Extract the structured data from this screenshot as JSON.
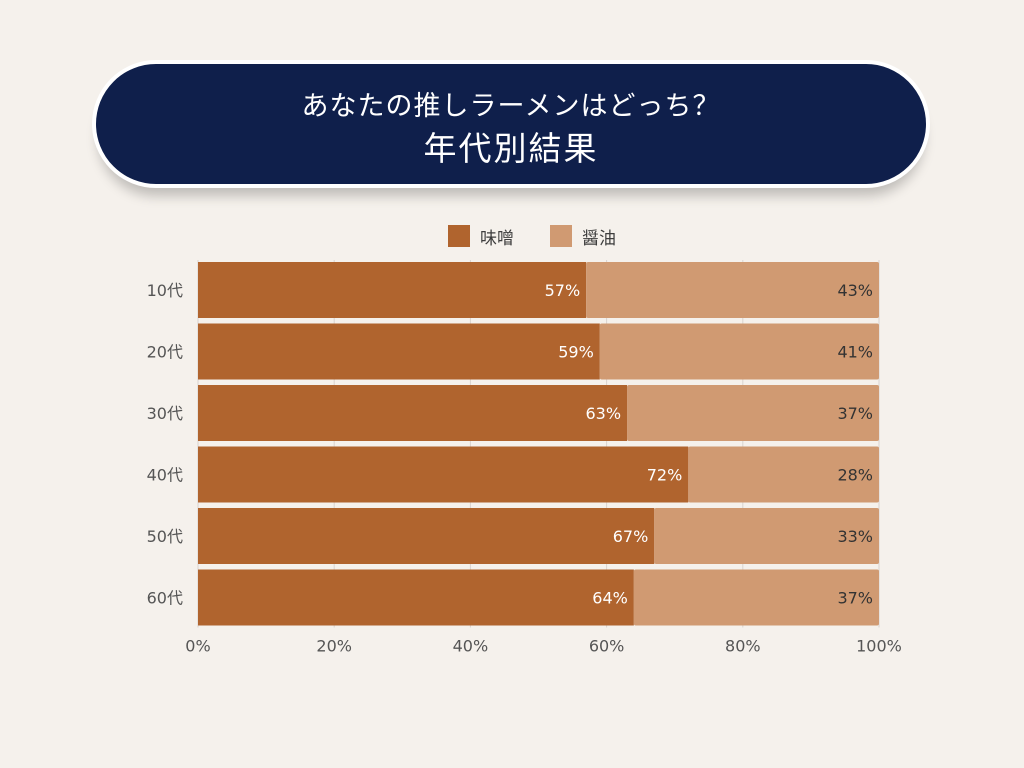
{
  "title": {
    "line1": "あなたの推しラーメンはどっち？",
    "line2": "年代別結果"
  },
  "chart_data": {
    "type": "bar",
    "orientation": "horizontal",
    "stacked": true,
    "categories": [
      "10代",
      "20代",
      "30代",
      "40代",
      "50代",
      "60代"
    ],
    "series": [
      {
        "name": "味噌",
        "color": "#b0642e",
        "values": [
          57,
          59,
          63,
          72,
          67,
          64
        ]
      },
      {
        "name": "醤油",
        "color": "#d09a72",
        "values": [
          43,
          41,
          37,
          28,
          33,
          37
        ]
      }
    ],
    "value_labels": {
      "味噌": [
        "57%",
        "59%",
        "63%",
        "72%",
        "67%",
        "64%"
      ],
      "醤油": [
        "43%",
        "41%",
        "37%",
        "28%",
        "33%",
        "37%"
      ]
    },
    "x_ticks": [
      "0%",
      "20%",
      "40%",
      "60%",
      "80%",
      "100%"
    ],
    "xlim": [
      0,
      100
    ],
    "grid": true,
    "legend_position": "top"
  }
}
